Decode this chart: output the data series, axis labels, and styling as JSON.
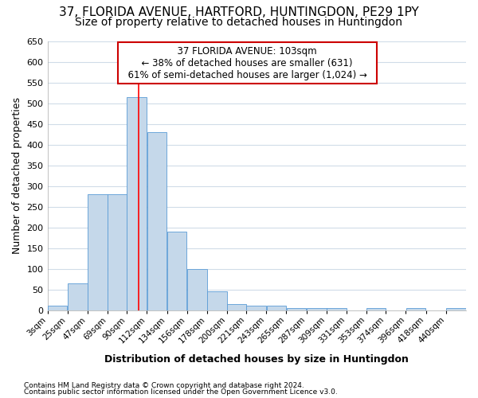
{
  "title1": "37, FLORIDA AVENUE, HARTFORD, HUNTINGDON, PE29 1PY",
  "title2": "Size of property relative to detached houses in Huntingdon",
  "xlabel": "Distribution of detached houses by size in Huntingdon",
  "ylabel": "Number of detached properties",
  "footnote1": "Contains HM Land Registry data © Crown copyright and database right 2024.",
  "footnote2": "Contains public sector information licensed under the Open Government Licence v3.0.",
  "annotation_line1": "37 FLORIDA AVENUE: 103sqm",
  "annotation_line2": "← 38% of detached houses are smaller (631)",
  "annotation_line3": "61% of semi-detached houses are larger (1,024) →",
  "bar_edges": [
    3,
    25,
    47,
    69,
    90,
    112,
    134,
    156,
    178,
    200,
    221,
    243,
    265,
    287,
    309,
    331,
    353,
    374,
    396,
    418,
    440
  ],
  "bar_heights": [
    10,
    65,
    280,
    280,
    515,
    430,
    190,
    100,
    45,
    15,
    10,
    10,
    5,
    5,
    5,
    0,
    5,
    0,
    5,
    0,
    5
  ],
  "bar_color": "#c5d8ea",
  "bar_edge_color": "#5b9bd5",
  "red_line_x": 103,
  "ylim": [
    0,
    650
  ],
  "yticks": [
    0,
    50,
    100,
    150,
    200,
    250,
    300,
    350,
    400,
    450,
    500,
    550,
    600,
    650
  ],
  "bg_color": "#ffffff",
  "plot_bg_color": "#ffffff",
  "grid_color": "#d0dce8",
  "annotation_box_facecolor": "#ffffff",
  "annotation_box_edgecolor": "#cc0000",
  "title_fontsize": 11,
  "subtitle_fontsize": 10,
  "axis_label_fontsize": 9,
  "tick_label_fontsize": 7.5,
  "footnote_fontsize": 6.5,
  "annotation_fontsize": 8.5
}
